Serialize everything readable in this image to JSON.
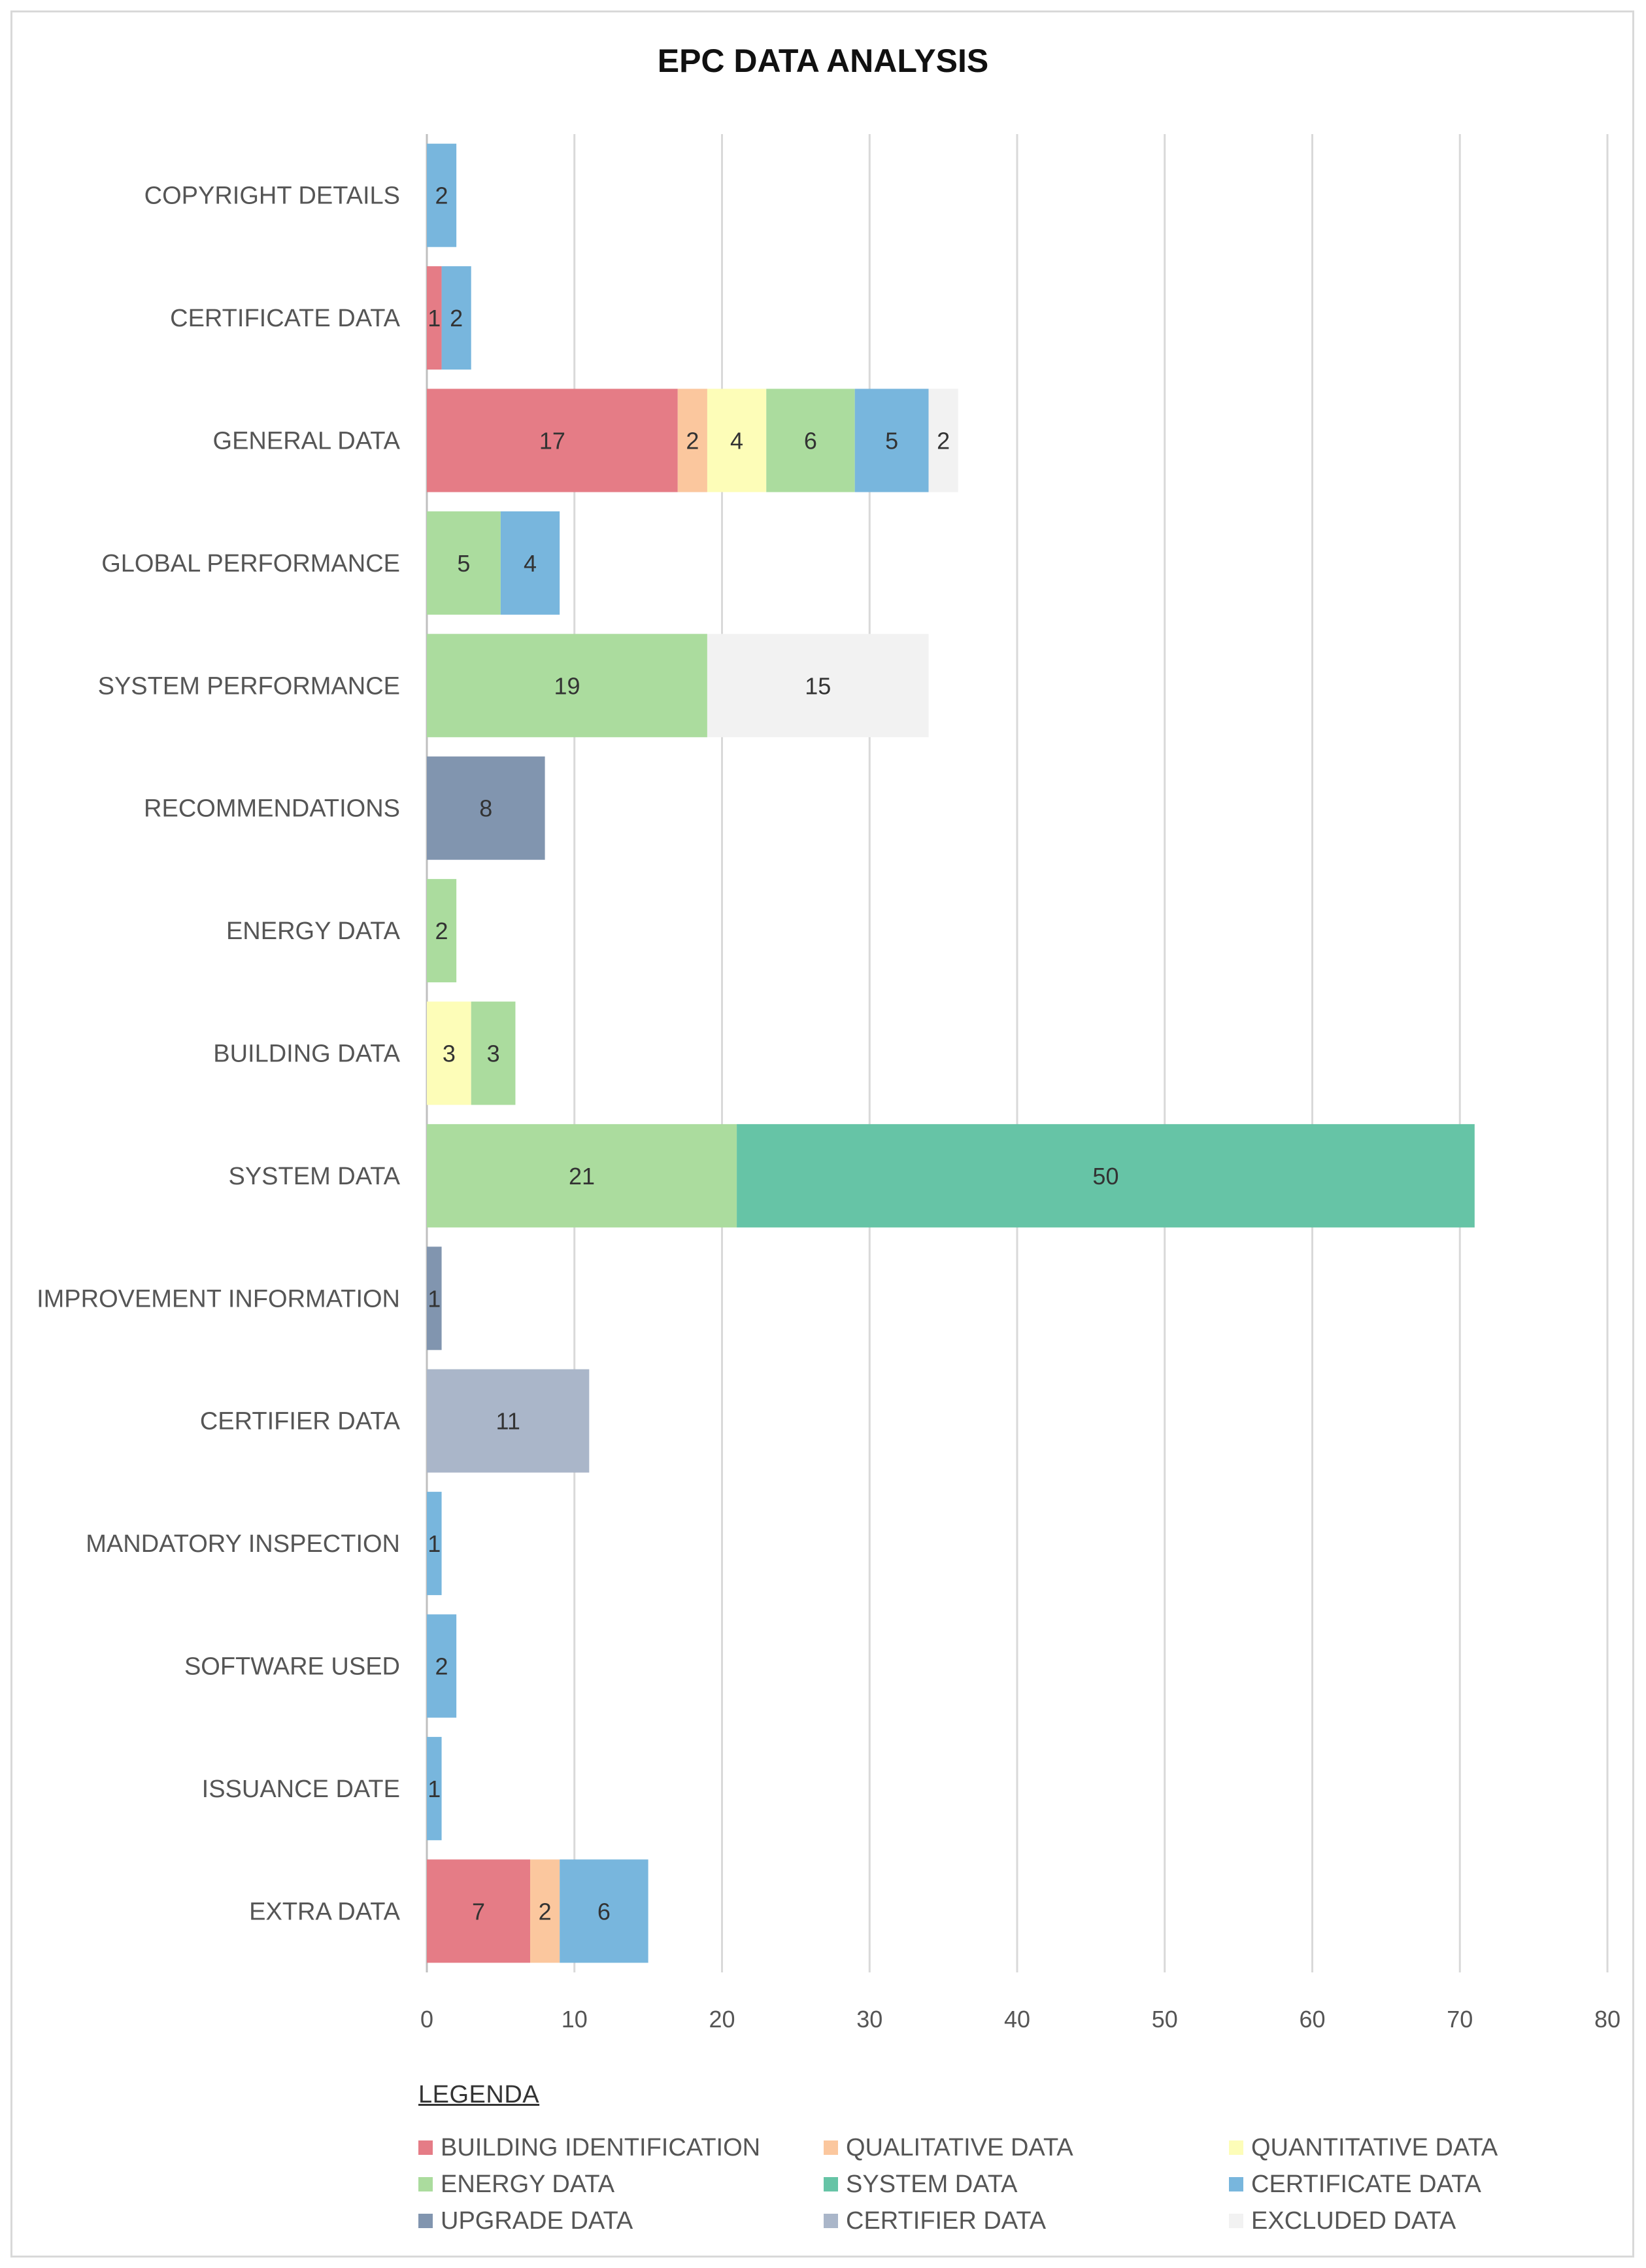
{
  "chart_data": {
    "type": "bar",
    "orientation": "horizontal",
    "stacked": true,
    "title": "EPC DATA ANALYSIS",
    "xlabel": "",
    "ylabel": "",
    "xlim": [
      0,
      80
    ],
    "x_ticks": [
      0,
      10,
      20,
      30,
      40,
      50,
      60,
      70,
      80
    ],
    "grid": true,
    "categories": [
      "COPYRIGHT DETAILS",
      "CERTIFICATE DATA",
      "GENERAL DATA",
      "GLOBAL PERFORMANCE",
      "SYSTEM PERFORMANCE",
      "RECOMMENDATIONS",
      "ENERGY DATA",
      "BUILDING DATA",
      "SYSTEM DATA",
      "IMPROVEMENT INFORMATION",
      "CERTIFIER DATA",
      "MANDATORY INSPECTION",
      "SOFTWARE USED",
      "ISSUANCE DATE",
      "EXTRA DATA"
    ],
    "series": [
      {
        "name": "BUILDING IDENTIFICATION",
        "color": "#e57c86",
        "values": [
          0,
          1,
          17,
          0,
          0,
          0,
          0,
          0,
          0,
          0,
          0,
          0,
          0,
          0,
          7
        ]
      },
      {
        "name": "QUALITATIVE DATA",
        "color": "#fbc79e",
        "values": [
          0,
          0,
          2,
          0,
          0,
          0,
          0,
          0,
          0,
          0,
          0,
          0,
          0,
          0,
          2
        ]
      },
      {
        "name": "QUANTITATIVE DATA",
        "color": "#fdfdb8",
        "values": [
          0,
          0,
          4,
          0,
          0,
          0,
          0,
          3,
          0,
          0,
          0,
          0,
          0,
          0,
          0
        ]
      },
      {
        "name": "ENERGY DATA",
        "color": "#abdc9e",
        "values": [
          0,
          0,
          6,
          5,
          19,
          0,
          2,
          3,
          21,
          0,
          0,
          0,
          0,
          0,
          0
        ]
      },
      {
        "name": "SYSTEM DATA",
        "color": "#66c4a6",
        "values": [
          0,
          0,
          0,
          0,
          0,
          0,
          0,
          0,
          50,
          0,
          0,
          0,
          0,
          0,
          0
        ]
      },
      {
        "name": "CERTIFICATE DATA",
        "color": "#78b6dd",
        "values": [
          2,
          2,
          5,
          4,
          0,
          0,
          0,
          0,
          0,
          0,
          0,
          1,
          2,
          1,
          6
        ]
      },
      {
        "name": "UPGRADE DATA",
        "color": "#8195af",
        "values": [
          0,
          0,
          0,
          0,
          0,
          8,
          0,
          0,
          0,
          1,
          0,
          0,
          0,
          0,
          0
        ]
      },
      {
        "name": "CERTIFIER DATA",
        "color": "#aab6c9",
        "values": [
          0,
          0,
          0,
          0,
          0,
          0,
          0,
          0,
          0,
          0,
          11,
          0,
          0,
          0,
          0
        ]
      },
      {
        "name": "EXCLUDED DATA",
        "color": "#f2f2f2",
        "values": [
          0,
          0,
          2,
          0,
          15,
          0,
          0,
          0,
          0,
          0,
          0,
          0,
          0,
          0,
          0
        ]
      }
    ],
    "legend_title": "LEGENDA",
    "legend_position": "bottom-left"
  }
}
